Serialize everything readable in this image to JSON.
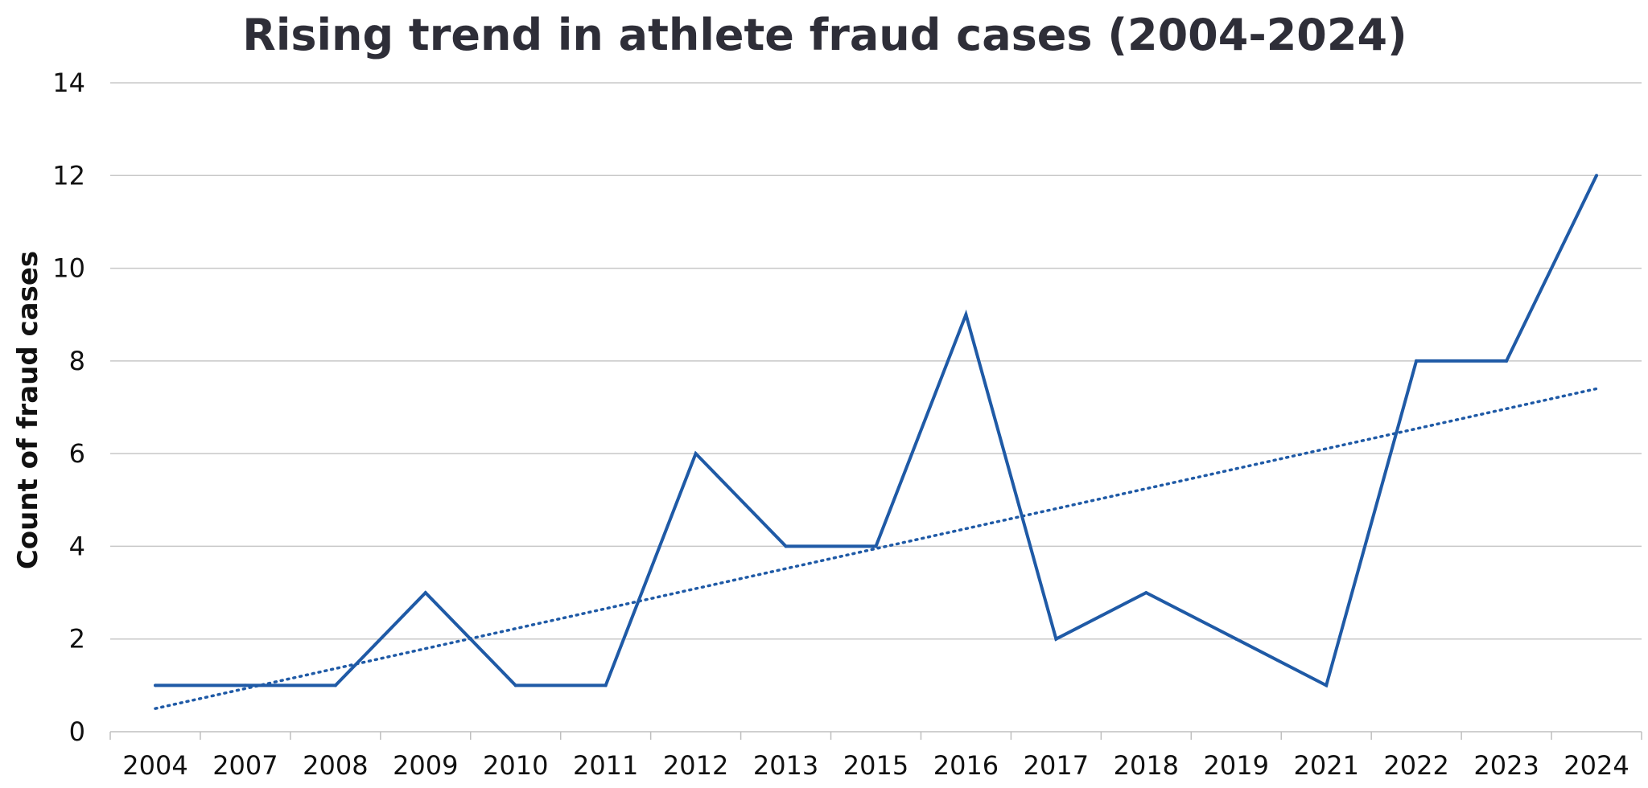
{
  "chart_data": {
    "type": "line",
    "title": "Rising trend in athlete fraud cases (2004-2024)",
    "xlabel": "",
    "ylabel": "Count of fraud cases",
    "categories": [
      "2004",
      "2007",
      "2008",
      "2009",
      "2010",
      "2011",
      "2012",
      "2013",
      "2015",
      "2016",
      "2017",
      "2018",
      "2019",
      "2021",
      "2022",
      "2023",
      "2024"
    ],
    "series": [
      {
        "values": [
          1,
          1,
          1,
          3,
          1,
          1,
          6,
          4,
          4,
          9,
          2,
          3,
          2,
          1,
          8,
          8,
          12
        ],
        "color": "#1f5aa6"
      }
    ],
    "trendline": {
      "type": "linear",
      "start": 0.5,
      "end": 7.4,
      "color": "#1f5aa6",
      "style": "dotted"
    },
    "ylim": [
      0,
      14
    ],
    "yticks": [
      0,
      2,
      4,
      6,
      8,
      10,
      12,
      14
    ],
    "grid": true,
    "legend": "none"
  }
}
